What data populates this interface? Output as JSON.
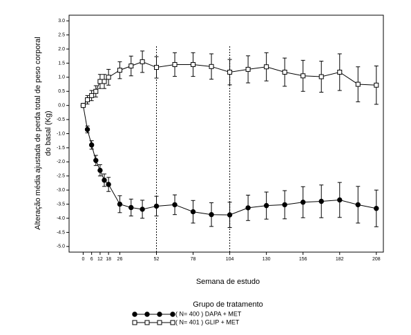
{
  "chart_data": {
    "type": "line",
    "ylabel": [
      "Alteração média ajustada de perda total de peso corporal",
      "do basal (Kg)"
    ],
    "xlabel": "Semana de estudo",
    "legend_title": "Grupo de tratamento",
    "legend_position": "bottom",
    "x": [
      0,
      3,
      6,
      9,
      12,
      15,
      18,
      26,
      34,
      42,
      52,
      65,
      78,
      91,
      104,
      117,
      130,
      143,
      156,
      169,
      182,
      195,
      208
    ],
    "series": [
      {
        "name": "( N= 400 ) DAPA + MET",
        "color": "#000000",
        "marker": "filled-circle",
        "values": [
          0,
          -0.85,
          -1.4,
          -1.95,
          -2.3,
          -2.65,
          -2.8,
          -3.5,
          -3.62,
          -3.68,
          -3.57,
          -3.52,
          -3.77,
          -3.87,
          -3.88,
          -3.63,
          -3.55,
          -3.52,
          -3.43,
          -3.4,
          -3.35,
          -3.52,
          -3.65
        ],
        "errors": [
          0,
          0.12,
          0.15,
          0.18,
          0.2,
          0.22,
          0.25,
          0.3,
          0.3,
          0.32,
          0.35,
          0.35,
          0.4,
          0.42,
          0.45,
          0.45,
          0.48,
          0.5,
          0.55,
          0.58,
          0.62,
          0.65,
          0.65
        ]
      },
      {
        "name": "( N= 401 ) GLIP + MET",
        "color": "#000000",
        "marker": "open-square",
        "values": [
          0,
          0.2,
          0.35,
          0.5,
          0.85,
          0.85,
          1.0,
          1.25,
          1.4,
          1.55,
          1.35,
          1.45,
          1.45,
          1.38,
          1.18,
          1.28,
          1.37,
          1.18,
          1.05,
          1.02,
          1.18,
          0.75,
          0.72
        ],
        "errors": [
          0,
          0.15,
          0.18,
          0.2,
          0.25,
          0.25,
          0.28,
          0.3,
          0.35,
          0.38,
          0.38,
          0.42,
          0.42,
          0.45,
          0.45,
          0.48,
          0.5,
          0.5,
          0.55,
          0.55,
          0.65,
          0.62,
          0.68
        ]
      }
    ],
    "xlim": [
      -10,
      213
    ],
    "ylim": [
      -5.2,
      3.2
    ],
    "xticks": [
      0,
      6,
      12,
      18,
      26,
      52,
      78,
      104,
      130,
      156,
      182,
      208
    ],
    "yticks": [
      {
        "value": 3,
        "label": "3.0"
      },
      {
        "value": 2.5,
        "label": "2.5"
      },
      {
        "value": 2,
        "label": "2.0"
      },
      {
        "value": 1.5,
        "label": "1.5"
      },
      {
        "value": 1,
        "label": "1.0"
      },
      {
        "value": 0.5,
        "label": "0.5"
      },
      {
        "value": 0,
        "label": "0.0"
      },
      {
        "value": -0.5,
        "label": "-0.5"
      },
      {
        "value": -1,
        "label": "-1.0"
      },
      {
        "value": -1.5,
        "label": "-1.5"
      },
      {
        "value": -2,
        "label": "-2.0"
      },
      {
        "value": -2.5,
        "label": "-2.5"
      },
      {
        "value": -3,
        "label": "-3.0"
      },
      {
        "value": -3.5,
        "label": "-3.5"
      },
      {
        "value": -4,
        "label": "-4.0"
      },
      {
        "value": -4.5,
        "label": "-4.5"
      },
      {
        "value": -5,
        "label": "-5.0"
      }
    ],
    "vlines": [
      52,
      104
    ],
    "grid": false
  }
}
